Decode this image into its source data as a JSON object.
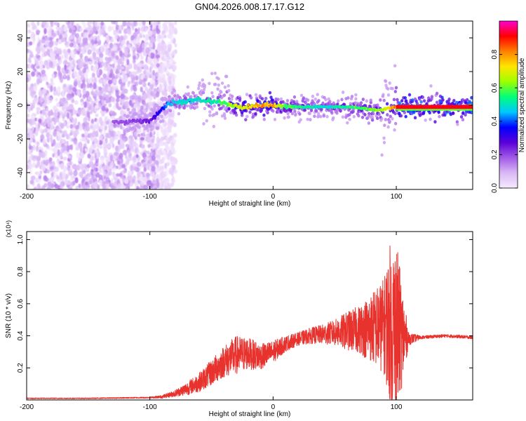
{
  "title": "GN04.2026.008.17.17.G12",
  "colors": {
    "snr_line": "#e8322e",
    "axis": "#000000",
    "background": "#ffffff",
    "colormap": [
      "#f6eaff",
      "#d9b8f5",
      "#a35ae8",
      "#5a00d8",
      "#0000ff",
      "#00c8ff",
      "#00ff7a",
      "#9cff00",
      "#ffe600",
      "#ff8000",
      "#ff0000",
      "#ff00d0"
    ]
  },
  "chart_data": [
    {
      "type": "heatmap",
      "title": "GN04.2026.008.17.17.G12",
      "xlabel": "Height of straight line (km)",
      "ylabel": "Frequency (Hz)",
      "xlim": [
        -200,
        162
      ],
      "ylim": [
        -50,
        50
      ],
      "xticks": [
        "-200",
        "-100",
        "0",
        "100"
      ],
      "yticks": [
        "-40",
        "-20",
        "0",
        "20",
        "40"
      ],
      "colorbar": {
        "label": "Normalized spectral amplitude",
        "range": [
          0.0,
          1.0
        ],
        "ticks": [
          "0.0",
          "0.2",
          "0.4",
          "0.6",
          "0.8"
        ]
      },
      "ridge": {
        "description": "dominant Doppler-frequency track",
        "x": [
          -200,
          -120,
          -100,
          -92,
          -85,
          -75,
          -60,
          -45,
          -38,
          -30,
          -20,
          -10,
          0,
          10,
          20,
          40,
          60,
          75,
          85,
          92,
          100,
          120,
          162
        ],
        "y": [
          -11,
          -10,
          -9,
          -4,
          1,
          2,
          3,
          2,
          1,
          -1,
          -1,
          0,
          0,
          -1,
          -1,
          -1,
          -1,
          -2,
          -3,
          -2,
          -1,
          -1,
          -1
        ],
        "amplitude": [
          0.15,
          0.2,
          0.25,
          0.35,
          0.45,
          0.5,
          0.5,
          0.55,
          0.6,
          0.7,
          0.75,
          0.8,
          0.8,
          0.6,
          0.55,
          0.5,
          0.55,
          0.6,
          0.65,
          0.7,
          0.85,
          0.9,
          0.9
        ]
      },
      "noise_region": {
        "x_from": -200,
        "x_to": -85,
        "amplitude_max": 0.15
      }
    },
    {
      "type": "line",
      "xlabel": "Height of straight line (km)",
      "ylabel": "SNR (10 * v/v)",
      "y_scale_label": "(x10⁴)",
      "xlim": [
        -200,
        162
      ],
      "ylim": [
        0,
        1.05
      ],
      "xticks": [
        "-200",
        "-100",
        "0",
        "100"
      ],
      "yticks": [
        "0.2",
        "0.4",
        "0.6",
        "0.8",
        "1.0"
      ],
      "series": [
        {
          "name": "SNR",
          "x": [
            -200,
            -150,
            -100,
            -90,
            -80,
            -70,
            -60,
            -50,
            -40,
            -30,
            -20,
            -10,
            0,
            10,
            20,
            30,
            40,
            50,
            60,
            70,
            80,
            90,
            95,
            100,
            105,
            110,
            120,
            140,
            162
          ],
          "y": [
            0.01,
            0.01,
            0.015,
            0.02,
            0.04,
            0.07,
            0.11,
            0.17,
            0.24,
            0.28,
            0.29,
            0.27,
            0.3,
            0.35,
            0.38,
            0.4,
            0.41,
            0.42,
            0.43,
            0.44,
            0.45,
            0.46,
            0.48,
            0.45,
            0.4,
            0.38,
            0.39,
            0.4,
            0.39
          ],
          "fluctuation": [
            0.003,
            0.003,
            0.004,
            0.01,
            0.02,
            0.04,
            0.06,
            0.08,
            0.1,
            0.12,
            0.1,
            0.08,
            0.07,
            0.05,
            0.04,
            0.05,
            0.06,
            0.08,
            0.12,
            0.15,
            0.22,
            0.3,
            0.5,
            0.55,
            0.3,
            0.04,
            0.01,
            0.01,
            0.01
          ]
        }
      ]
    }
  ]
}
